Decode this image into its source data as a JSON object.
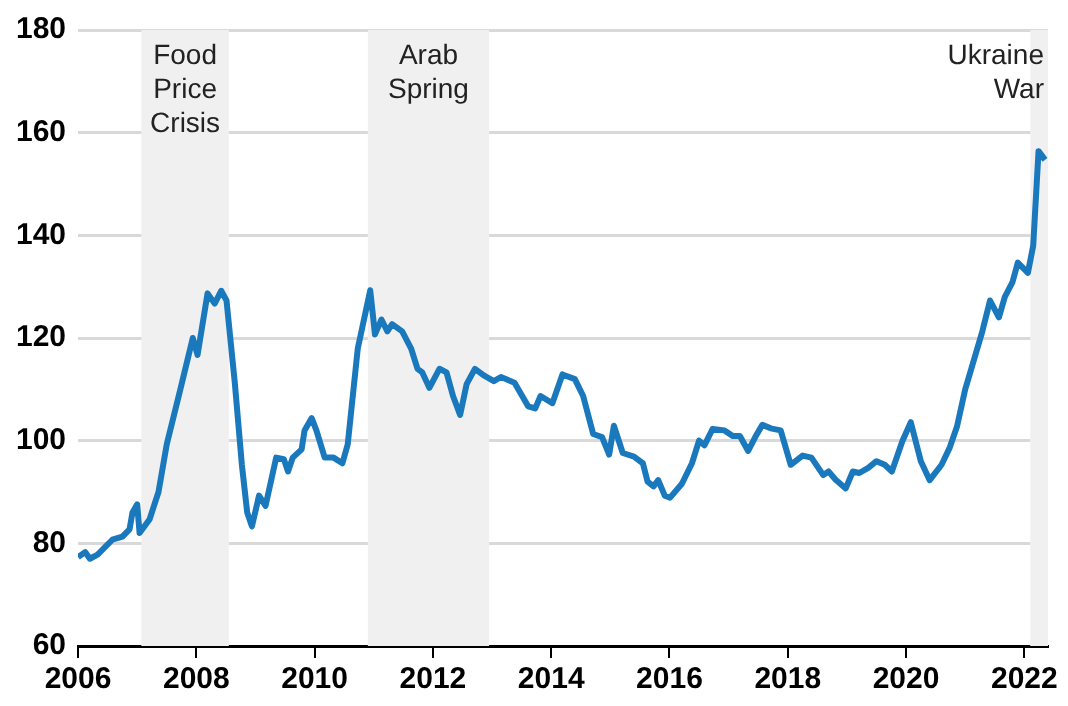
{
  "chart_data": {
    "type": "line",
    "xlim": [
      2006,
      2022.4
    ],
    "xticks": [
      2006,
      2008,
      2010,
      2012,
      2014,
      2016,
      2018,
      2020,
      2022
    ],
    "ylim": [
      60,
      180
    ],
    "yticks": [
      60,
      80,
      100,
      120,
      140,
      160,
      180
    ],
    "grid": "y",
    "legend": false,
    "marker": "none",
    "line_style": "solid",
    "bands": [
      {
        "axis": "x",
        "from": 2007.07,
        "to": 2008.55,
        "label": "Food Price Crisis",
        "color": "#f0f0f0"
      },
      {
        "axis": "x",
        "from": 2010.9,
        "to": 2012.95,
        "label": "Arab Spring",
        "color": "#f0f0f0"
      },
      {
        "axis": "x",
        "from": 2022.1,
        "to": 2022.4,
        "label": "Ukraine War",
        "color": "#f0f0f0"
      }
    ],
    "series": [
      {
        "color": "#1a78bd",
        "x": [
          2006.0,
          2006.12,
          2006.2,
          2006.33,
          2006.46,
          2006.58,
          2006.75,
          2006.87,
          2006.92,
          2007.0,
          2007.04,
          2007.21,
          2007.36,
          2007.5,
          2007.73,
          2007.94,
          2008.02,
          2008.19,
          2008.31,
          2008.42,
          2008.51,
          2008.65,
          2008.77,
          2008.86,
          2008.94,
          2009.06,
          2009.17,
          2009.35,
          2009.48,
          2009.55,
          2009.63,
          2009.78,
          2009.83,
          2009.95,
          2010.03,
          2010.17,
          2010.32,
          2010.47,
          2010.56,
          2010.73,
          2010.94,
          2011.02,
          2011.13,
          2011.23,
          2011.31,
          2011.48,
          2011.63,
          2011.74,
          2011.82,
          2011.94,
          2012.11,
          2012.23,
          2012.34,
          2012.46,
          2012.57,
          2012.71,
          2012.86,
          2013.03,
          2013.15,
          2013.38,
          2013.61,
          2013.73,
          2013.82,
          2014.02,
          2014.19,
          2014.4,
          2014.54,
          2014.71,
          2014.86,
          2014.98,
          2015.06,
          2015.21,
          2015.4,
          2015.55,
          2015.63,
          2015.73,
          2015.81,
          2015.92,
          2016.01,
          2016.21,
          2016.38,
          2016.5,
          2016.59,
          2016.73,
          2016.93,
          2017.07,
          2017.19,
          2017.33,
          2017.45,
          2017.57,
          2017.71,
          2017.88,
          2018.05,
          2018.25,
          2018.4,
          2018.6,
          2018.69,
          2018.81,
          2018.98,
          2019.1,
          2019.21,
          2019.36,
          2019.5,
          2019.64,
          2019.76,
          2019.94,
          2020.08,
          2020.25,
          2020.4,
          2020.6,
          2020.74,
          2020.86,
          2021.0,
          2021.29,
          2021.42,
          2021.57,
          2021.67,
          2021.8,
          2021.89,
          2022.06,
          2022.15,
          2022.24,
          2022.35
        ],
        "values": [
          77.3,
          78.3,
          77,
          77.8,
          79.3,
          80.7,
          81.3,
          82.7,
          86,
          87.6,
          82,
          84.7,
          90,
          99.3,
          110,
          120,
          116.7,
          128.7,
          126.7,
          129.2,
          127.3,
          111.3,
          95.3,
          86,
          83.3,
          89.3,
          87.3,
          96.7,
          96.4,
          94,
          96.7,
          98.3,
          102,
          104.4,
          102,
          96.7,
          96.7,
          95.6,
          99.3,
          118,
          129.3,
          120.7,
          123.6,
          121.3,
          122.7,
          121.3,
          118,
          114,
          113.3,
          110.3,
          114,
          113.3,
          108.7,
          105,
          111,
          114,
          112.7,
          111.6,
          112.4,
          111.3,
          106.7,
          106.3,
          108.7,
          107.3,
          112.9,
          112,
          108.7,
          101.3,
          100.7,
          97.3,
          102.9,
          97.6,
          96.9,
          95.6,
          92,
          91.1,
          92.3,
          89.3,
          88.9,
          91.6,
          95.6,
          100,
          99.1,
          102.3,
          102,
          100.9,
          100.9,
          98,
          100.7,
          103.1,
          102.4,
          102,
          95.3,
          97.1,
          96.7,
          93.3,
          94,
          92.4,
          90.7,
          94,
          93.7,
          94.7,
          96,
          95.3,
          94,
          100,
          103.6,
          96,
          92.3,
          95.3,
          98.7,
          102.7,
          110,
          121.3,
          127.3,
          124,
          128,
          130.9,
          134.7,
          132.7,
          138,
          156.4,
          154.7
        ]
      }
    ]
  }
}
